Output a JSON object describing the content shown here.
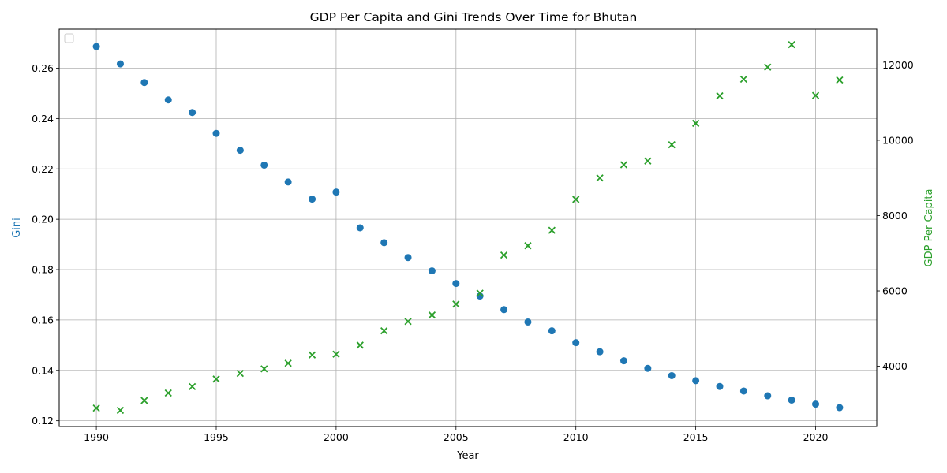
{
  "chart_data": {
    "type": "scatter",
    "title": "GDP Per Capita and Gini Trends Over Time for Bhutan",
    "xlabel": "Year",
    "ylabel_left": "Gini",
    "ylabel_right": "GDP Per Capita",
    "xlim": [
      1988.45,
      2022.55
    ],
    "ylim_left": [
      0.1177,
      0.2755
    ],
    "ylim_right": [
      2400,
      12950
    ],
    "x_ticks": [
      1990,
      1995,
      2000,
      2005,
      2010,
      2015,
      2020
    ],
    "y_ticks_left": [
      0.12,
      0.14,
      0.16,
      0.18,
      0.2,
      0.22,
      0.24,
      0.26
    ],
    "y_ticks_left_labels": [
      "0.12",
      "0.14",
      "0.16",
      "0.18",
      "0.20",
      "0.22",
      "0.24",
      "0.26"
    ],
    "y_ticks_right": [
      4000,
      6000,
      8000,
      10000,
      12000
    ],
    "y_ticks_right_labels": [
      "4000",
      "6000",
      "8000",
      "10000",
      "12000"
    ],
    "grid": true,
    "legend": "top-left (empty)",
    "x": [
      1990,
      1991,
      1992,
      1993,
      1994,
      1995,
      1996,
      1997,
      1998,
      1999,
      2000,
      2001,
      2002,
      2003,
      2004,
      2005,
      2006,
      2007,
      2008,
      2009,
      2010,
      2011,
      2012,
      2013,
      2014,
      2015,
      2016,
      2017,
      2018,
      2019,
      2020,
      2021
    ],
    "series": [
      {
        "axis": "left",
        "marker": "circle",
        "color": "#1f77b4",
        "values": [
          0.2686,
          0.2617,
          0.2543,
          0.2474,
          0.2424,
          0.2341,
          0.2274,
          0.2215,
          0.2148,
          0.208,
          0.2108,
          0.1966,
          0.1907,
          0.1848,
          0.1795,
          0.1745,
          0.1695,
          0.1641,
          0.1592,
          0.1557,
          0.151,
          0.1474,
          0.1438,
          0.1408,
          0.1379,
          0.1359,
          0.1336,
          0.1318,
          0.1299,
          0.1282,
          0.1266,
          0.1252
        ]
      },
      {
        "axis": "right",
        "marker": "x",
        "color": "#2ca02c",
        "values": [
          2890,
          2830,
          3090,
          3290,
          3460,
          3660,
          3810,
          3930,
          4080,
          4300,
          4320,
          4560,
          4940,
          5190,
          5360,
          5650,
          5940,
          6950,
          7200,
          7610,
          8430,
          9000,
          9350,
          9450,
          9880,
          10450,
          11180,
          11620,
          11940,
          12540,
          11190,
          11600
        ]
      }
    ]
  }
}
